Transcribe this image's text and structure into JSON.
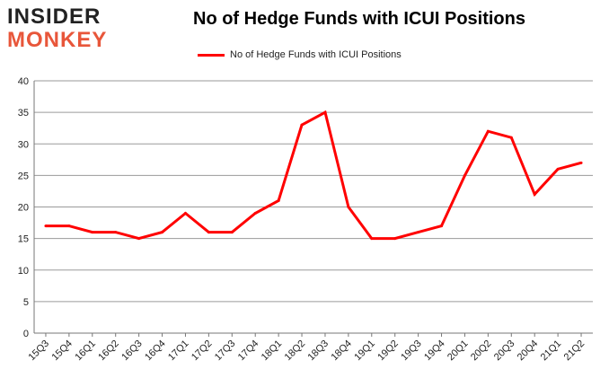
{
  "brand": {
    "line1": "INSIDER",
    "line2": "MONKEY",
    "color_dark": "#222222",
    "color_accent": "#e8563a"
  },
  "chart_data": {
    "type": "line",
    "title": "No of Hedge Funds with ICUI Positions",
    "xlabel": "",
    "ylabel": "",
    "ylim": [
      0,
      40
    ],
    "yticks": [
      0,
      5,
      10,
      15,
      20,
      25,
      30,
      35,
      40
    ],
    "grid": true,
    "legend_position": "top",
    "categories": [
      "15Q3",
      "15Q4",
      "16Q1",
      "16Q2",
      "16Q3",
      "16Q4",
      "17Q1",
      "17Q2",
      "17Q3",
      "17Q4",
      "18Q1",
      "18Q2",
      "18Q3",
      "18Q4",
      "19Q1",
      "19Q2",
      "19Q3",
      "19Q4",
      "20Q1",
      "20Q2",
      "20Q3",
      "20Q4",
      "21Q1",
      "21Q2"
    ],
    "series": [
      {
        "name": "No of Hedge Funds with ICUI Positions",
        "color": "#ff0000",
        "values": [
          17,
          17,
          16,
          16,
          15,
          16,
          19,
          16,
          16,
          19,
          21,
          33,
          35,
          20,
          15,
          15,
          16,
          17,
          25,
          32,
          31,
          22,
          26,
          27
        ]
      }
    ]
  }
}
